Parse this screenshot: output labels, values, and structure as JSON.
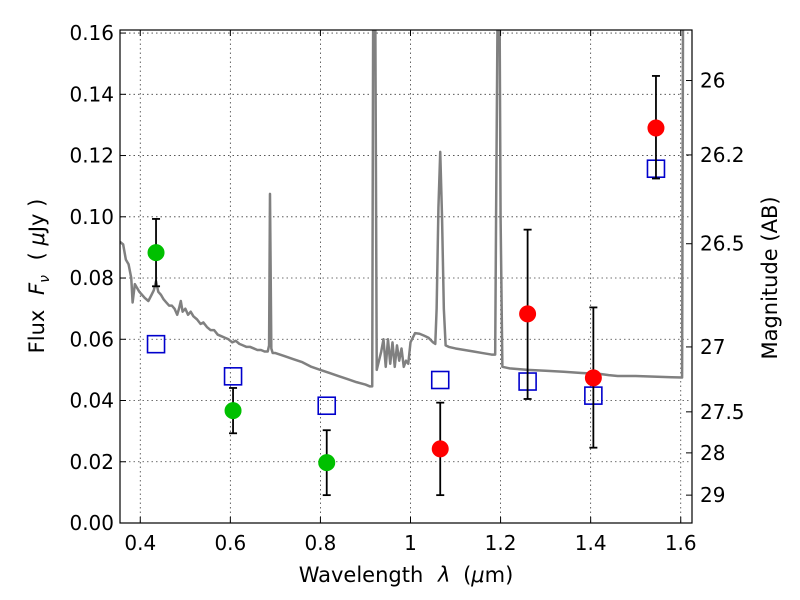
{
  "chart_data": {
    "type": "scatter",
    "title": "",
    "xlabel": "Wavelength  λ (μm)",
    "ylabel": "Flux  F_ν  ( μJy )",
    "ylabel_parts": [
      "Flux",
      "F",
      "ν",
      "( ",
      "μ",
      "Jy )"
    ],
    "xlabel_parts": [
      "Wavelength",
      "λ",
      "(",
      "μ",
      "m)"
    ],
    "y2label": "Magnitude (AB)",
    "xlim": [
      0.355,
      1.625
    ],
    "ylim": [
      0.0,
      0.161
    ],
    "xticks": [
      0.4,
      0.6,
      0.8,
      1.0,
      1.2,
      1.4,
      1.6
    ],
    "xtick_labels": [
      "0.4",
      "0.6",
      "0.8",
      "1",
      "1.2",
      "1.4",
      "1.6"
    ],
    "yticks": [
      0.0,
      0.02,
      0.04,
      0.06,
      0.08,
      0.1,
      0.12,
      0.14,
      0.16
    ],
    "ytick_labels": [
      "0.00",
      "0.02",
      "0.04",
      "0.06",
      "0.08",
      "0.10",
      "0.12",
      "0.14",
      "0.16"
    ],
    "y2ticks": [
      {
        "label": "26",
        "flux": 0.1445
      },
      {
        "label": "26.2",
        "flux": 0.1202
      },
      {
        "label": "26.5",
        "flux": 0.0912
      },
      {
        "label": "27",
        "flux": 0.0575
      },
      {
        "label": "27.5",
        "flux": 0.0363
      },
      {
        "label": "28",
        "flux": 0.0229
      },
      {
        "label": "29",
        "flux": 0.0091
      }
    ],
    "grid": true,
    "series": [
      {
        "marker": "filled-circle",
        "color": "#00c000",
        "points": [
          {
            "x": 0.435,
            "y": 0.0883,
            "yerr": [
              0.0773,
              0.0993
            ]
          },
          {
            "x": 0.606,
            "y": 0.0367,
            "yerr": [
              0.0293,
              0.0441
            ]
          },
          {
            "x": 0.814,
            "y": 0.0197,
            "yerr": [
              0.0091,
              0.0303
            ]
          }
        ]
      },
      {
        "marker": "filled-circle",
        "color": "#ff0000",
        "points": [
          {
            "x": 1.066,
            "y": 0.0242,
            "yerr": [
              0.0091,
              0.0393
            ]
          },
          {
            "x": 1.26,
            "y": 0.0683,
            "yerr": [
              0.0405,
              0.0958
            ]
          },
          {
            "x": 1.406,
            "y": 0.0474,
            "yerr": [
              0.0246,
              0.0704
            ]
          },
          {
            "x": 1.545,
            "y": 0.129,
            "yerr": [
              0.1125,
              0.146
            ]
          }
        ]
      },
      {
        "marker": "open-square",
        "color": "#0000cc",
        "points": [
          {
            "x": 0.435,
            "y": 0.0584
          },
          {
            "x": 0.606,
            "y": 0.0479
          },
          {
            "x": 0.814,
            "y": 0.0383
          },
          {
            "x": 1.066,
            "y": 0.0467
          },
          {
            "x": 1.26,
            "y": 0.0462
          },
          {
            "x": 1.406,
            "y": 0.0416
          },
          {
            "x": 1.545,
            "y": 0.1157
          }
        ]
      },
      {
        "type": "line",
        "color": "#808080",
        "points": [
          [
            0.355,
            0.0918
          ],
          [
            0.362,
            0.091
          ],
          [
            0.368,
            0.086
          ],
          [
            0.374,
            0.0845
          ],
          [
            0.38,
            0.08
          ],
          [
            0.383,
            0.072
          ],
          [
            0.388,
            0.078
          ],
          [
            0.392,
            0.077
          ],
          [
            0.398,
            0.0755
          ],
          [
            0.404,
            0.0745
          ],
          [
            0.41,
            0.0735
          ],
          [
            0.418,
            0.0725
          ],
          [
            0.425,
            0.0745
          ],
          [
            0.43,
            0.076
          ],
          [
            0.435,
            0.079
          ],
          [
            0.44,
            0.0755
          ],
          [
            0.446,
            0.0745
          ],
          [
            0.452,
            0.073
          ],
          [
            0.458,
            0.072
          ],
          [
            0.464,
            0.071
          ],
          [
            0.47,
            0.071
          ],
          [
            0.476,
            0.07
          ],
          [
            0.482,
            0.068
          ],
          [
            0.486,
            0.07
          ],
          [
            0.49,
            0.0725
          ],
          [
            0.494,
            0.069
          ],
          [
            0.5,
            0.07
          ],
          [
            0.506,
            0.068
          ],
          [
            0.512,
            0.069
          ],
          [
            0.518,
            0.0675
          ],
          [
            0.526,
            0.0665
          ],
          [
            0.534,
            0.065
          ],
          [
            0.54,
            0.0655
          ],
          [
            0.548,
            0.064
          ],
          [
            0.556,
            0.063
          ],
          [
            0.564,
            0.063
          ],
          [
            0.572,
            0.0615
          ],
          [
            0.58,
            0.061
          ],
          [
            0.588,
            0.0605
          ],
          [
            0.596,
            0.06
          ],
          [
            0.604,
            0.059
          ],
          [
            0.612,
            0.0595
          ],
          [
            0.62,
            0.0585
          ],
          [
            0.628,
            0.058
          ],
          [
            0.636,
            0.0575
          ],
          [
            0.644,
            0.0575
          ],
          [
            0.652,
            0.057
          ],
          [
            0.66,
            0.0565
          ],
          [
            0.668,
            0.0565
          ],
          [
            0.676,
            0.056
          ],
          [
            0.683,
            0.056
          ],
          [
            0.686,
            0.058
          ],
          [
            0.688,
            0.1075
          ],
          [
            0.691,
            0.057
          ],
          [
            0.694,
            0.0555
          ],
          [
            0.7,
            0.0555
          ],
          [
            0.71,
            0.055
          ],
          [
            0.72,
            0.0545
          ],
          [
            0.74,
            0.0535
          ],
          [
            0.76,
            0.0525
          ],
          [
            0.78,
            0.051
          ],
          [
            0.8,
            0.05
          ],
          [
            0.82,
            0.049
          ],
          [
            0.84,
            0.048
          ],
          [
            0.86,
            0.047
          ],
          [
            0.88,
            0.046
          ],
          [
            0.9,
            0.0452
          ],
          [
            0.91,
            0.0446
          ],
          [
            0.915,
            0.0446
          ],
          [
            0.917,
            0.161
          ],
          [
            0.922,
            0.161
          ],
          [
            0.925,
            0.05
          ],
          [
            0.93,
            0.053
          ],
          [
            0.935,
            0.056
          ],
          [
            0.94,
            0.06
          ],
          [
            0.945,
            0.051
          ],
          [
            0.95,
            0.06
          ],
          [
            0.955,
            0.052
          ],
          [
            0.96,
            0.059
          ],
          [
            0.965,
            0.051
          ],
          [
            0.97,
            0.058
          ],
          [
            0.975,
            0.053
          ],
          [
            0.98,
            0.057
          ],
          [
            0.985,
            0.051
          ],
          [
            0.99,
            0.053
          ],
          [
            0.995,
            0.052
          ],
          [
            1.0,
            0.059
          ],
          [
            1.01,
            0.062
          ],
          [
            1.02,
            0.0618
          ],
          [
            1.03,
            0.0612
          ],
          [
            1.04,
            0.0605
          ],
          [
            1.05,
            0.059
          ],
          [
            1.055,
            0.0585
          ],
          [
            1.058,
            0.07
          ],
          [
            1.062,
            0.103
          ],
          [
            1.066,
            0.1212
          ],
          [
            1.07,
            0.1
          ],
          [
            1.074,
            0.07
          ],
          [
            1.078,
            0.058
          ],
          [
            1.085,
            0.0575
          ],
          [
            1.1,
            0.057
          ],
          [
            1.12,
            0.0565
          ],
          [
            1.14,
            0.056
          ],
          [
            1.16,
            0.0555
          ],
          [
            1.18,
            0.055
          ],
          [
            1.188,
            0.055
          ],
          [
            1.19,
            0.1
          ],
          [
            1.193,
            0.161
          ],
          [
            1.198,
            0.161
          ],
          [
            1.2,
            0.1
          ],
          [
            1.204,
            0.051
          ],
          [
            1.22,
            0.0505
          ],
          [
            1.26,
            0.05
          ],
          [
            1.3,
            0.0497
          ],
          [
            1.34,
            0.0494
          ],
          [
            1.38,
            0.049
          ],
          [
            1.42,
            0.0487
          ],
          [
            1.44,
            0.0483
          ],
          [
            1.46,
            0.048
          ],
          [
            1.5,
            0.048
          ],
          [
            1.54,
            0.0478
          ],
          [
            1.58,
            0.0476
          ],
          [
            1.603,
            0.0475
          ],
          [
            1.605,
            0.161
          ]
        ]
      }
    ]
  }
}
